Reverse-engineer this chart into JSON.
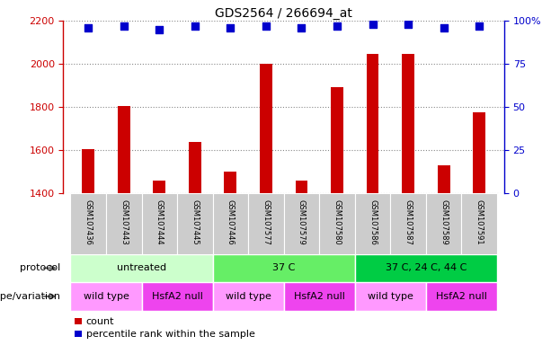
{
  "title": "GDS2564 / 266694_at",
  "samples": [
    "GSM107436",
    "GSM107443",
    "GSM107444",
    "GSM107445",
    "GSM107446",
    "GSM107577",
    "GSM107579",
    "GSM107580",
    "GSM107586",
    "GSM107587",
    "GSM107589",
    "GSM107591"
  ],
  "counts": [
    1605,
    1805,
    1460,
    1638,
    1503,
    2003,
    1462,
    1895,
    2048,
    2048,
    1530,
    1775
  ],
  "percentile_ranks": [
    96,
    97,
    95,
    97,
    96,
    97,
    96,
    97,
    98,
    98,
    96,
    97
  ],
  "ylim_left": [
    1400,
    2200
  ],
  "ylim_right": [
    0,
    100
  ],
  "yticks_left": [
    1400,
    1600,
    1800,
    2000,
    2200
  ],
  "yticks_right": [
    0,
    25,
    50,
    75,
    100
  ],
  "ytick_right_labels": [
    "0",
    "25",
    "50",
    "75",
    "100%"
  ],
  "bar_color": "#cc0000",
  "dot_color": "#0000cc",
  "protocol_groups": [
    {
      "label": "untreated",
      "start": 0,
      "end": 3,
      "color": "#ccffcc"
    },
    {
      "label": "37 C",
      "start": 4,
      "end": 7,
      "color": "#66ee66"
    },
    {
      "label": "37 C, 24 C, 44 C",
      "start": 8,
      "end": 11,
      "color": "#00cc44"
    }
  ],
  "genotype_groups": [
    {
      "label": "wild type",
      "start": 0,
      "end": 1,
      "color": "#ff99ff"
    },
    {
      "label": "HsfA2 null",
      "start": 2,
      "end": 3,
      "color": "#ee44ee"
    },
    {
      "label": "wild type",
      "start": 4,
      "end": 5,
      "color": "#ff99ff"
    },
    {
      "label": "HsfA2 null",
      "start": 6,
      "end": 7,
      "color": "#ee44ee"
    },
    {
      "label": "wild type",
      "start": 8,
      "end": 9,
      "color": "#ff99ff"
    },
    {
      "label": "HsfA2 null",
      "start": 10,
      "end": 11,
      "color": "#ee44ee"
    }
  ],
  "protocol_label": "protocol",
  "genotype_label": "genotype/variation",
  "legend_count_label": "count",
  "legend_percentile_label": "percentile rank within the sample",
  "left_axis_color": "#cc0000",
  "right_axis_color": "#0000cc",
  "grid_color": "#888888",
  "background_color": "#ffffff",
  "sample_bg_color": "#cccccc"
}
